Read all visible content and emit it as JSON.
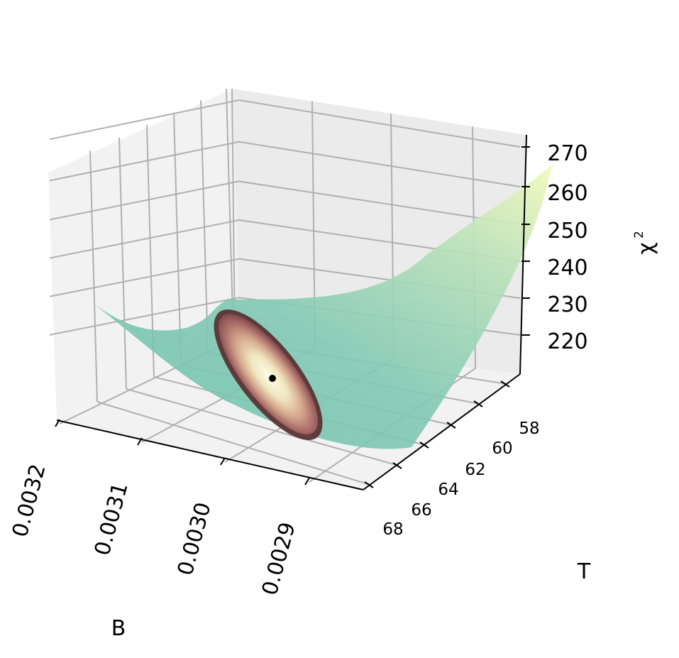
{
  "chart_data": {
    "type": "surface-3d",
    "title": "",
    "xlabel": "B",
    "ylabel": "T",
    "zlabel": "χ",
    "zlabel_superscript": "2",
    "x_ticks": [
      "0.0032",
      "0.0031",
      "0.0030",
      "0.0029"
    ],
    "x_tick_values": [
      0.0032,
      0.0031,
      0.003,
      0.0029
    ],
    "y_ticks": [
      "58",
      "60",
      "62",
      "64",
      "66",
      "68"
    ],
    "y_tick_values": [
      58,
      60,
      62,
      64,
      66,
      68
    ],
    "z_ticks": [
      "220",
      "230",
      "240",
      "250",
      "260",
      "270"
    ],
    "z_tick_values": [
      220,
      230,
      240,
      250,
      260,
      270
    ],
    "xlim": [
      0.00285,
      0.00322
    ],
    "ylim": [
      57,
      69
    ],
    "zlim": [
      212,
      272
    ],
    "grid": true,
    "surface": {
      "colormap": "YlGnBu-like",
      "color_low": "#7dc7b4",
      "color_mid": "#a9dab9",
      "color_high": "#f4fcbc",
      "min_chi2": 213,
      "best_fit": {
        "B": 0.00302,
        "T": 62.5,
        "chi2": 213
      }
    },
    "confidence_region": {
      "colors": [
        "#4a2a2a",
        "#a56a6a",
        "#e8c8a8",
        "#fcfce6"
      ]
    },
    "best_fit_marker_color": "#000000"
  }
}
